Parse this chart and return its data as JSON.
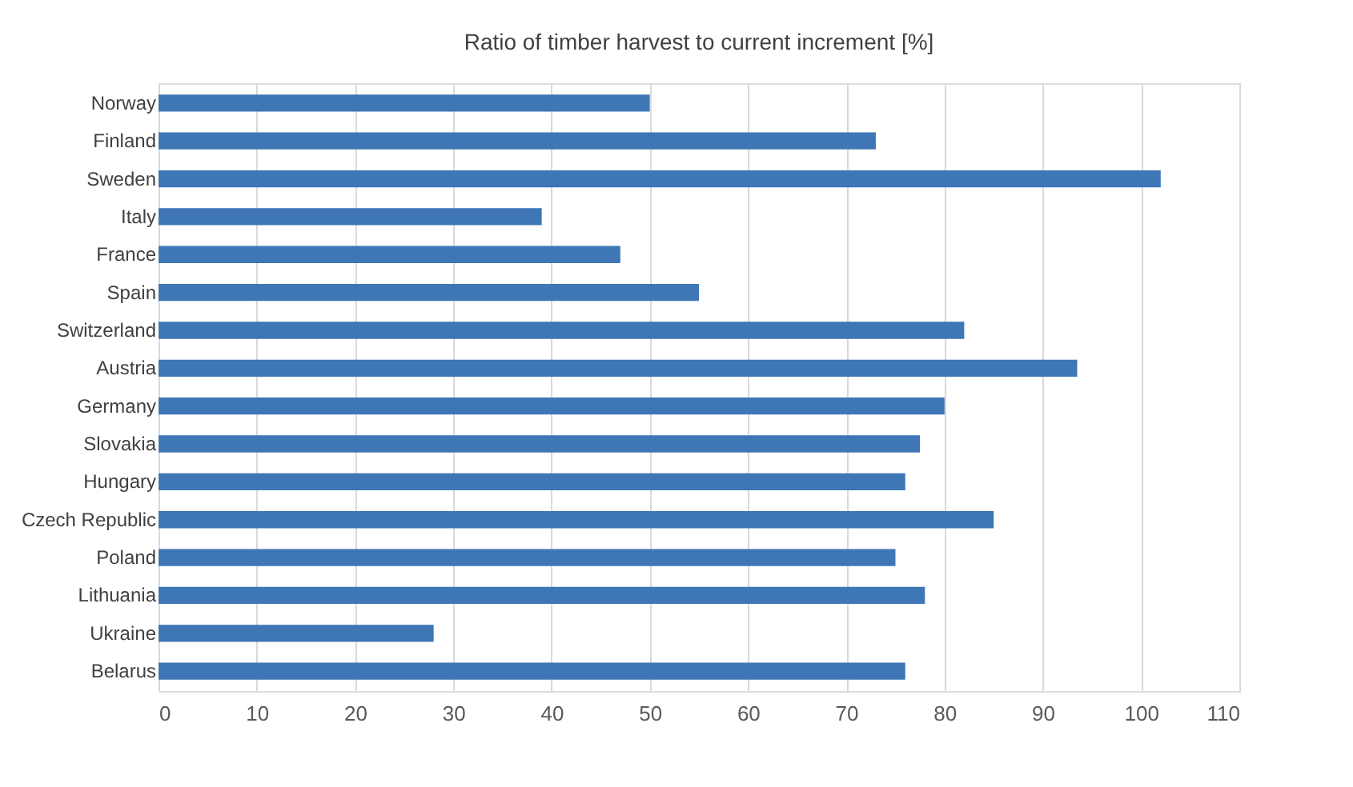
{
  "chart_data": {
    "type": "bar",
    "orientation": "horizontal",
    "title": "Ratio of timber  harvest to current increment   [%]",
    "categories": [
      "Norway",
      "Finland",
      "Sweden",
      "Italy",
      "France",
      "Spain",
      "Switzerland",
      "Austria",
      "Germany",
      "Slovakia",
      "Hungary",
      "Czech Republic",
      "Poland",
      "Lithuania",
      "Ukraine",
      "Belarus"
    ],
    "values": [
      50,
      73,
      102,
      39,
      47,
      55,
      82,
      93.5,
      80,
      77.5,
      76,
      85,
      75,
      78,
      28,
      76
    ],
    "color": "#3e76b6",
    "xlim": [
      0,
      110
    ],
    "xticks": [
      0,
      10,
      20,
      30,
      40,
      50,
      60,
      70,
      80,
      90,
      100,
      110
    ],
    "grid": "x"
  }
}
